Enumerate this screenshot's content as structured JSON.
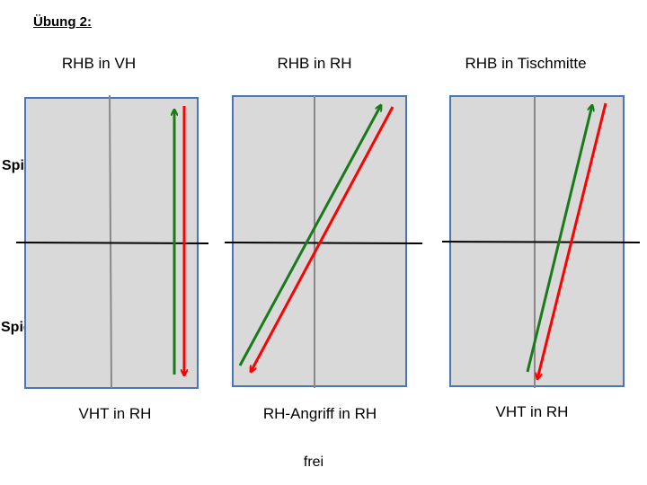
{
  "title": "Übung 2:",
  "player_labels": {
    "top": "Spieler B",
    "bottom": "Spieler A"
  },
  "tables": [
    {
      "top_label": "RHB in VH",
      "bottom_label": "VHT in RH"
    },
    {
      "top_label": "RHB in RH",
      "bottom_label": "RH-Angriff in RH"
    },
    {
      "top_label": "RHB in Tischmitte",
      "bottom_label": "VHT in RH"
    }
  ],
  "footer": "frei",
  "colors": {
    "table_fill": "#d9d9d9",
    "table_border": "#4a76b8",
    "center_line": "#888888",
    "net": "#000000",
    "arrow_up": "#1a7a1a",
    "arrow_down": "#ff0000"
  }
}
